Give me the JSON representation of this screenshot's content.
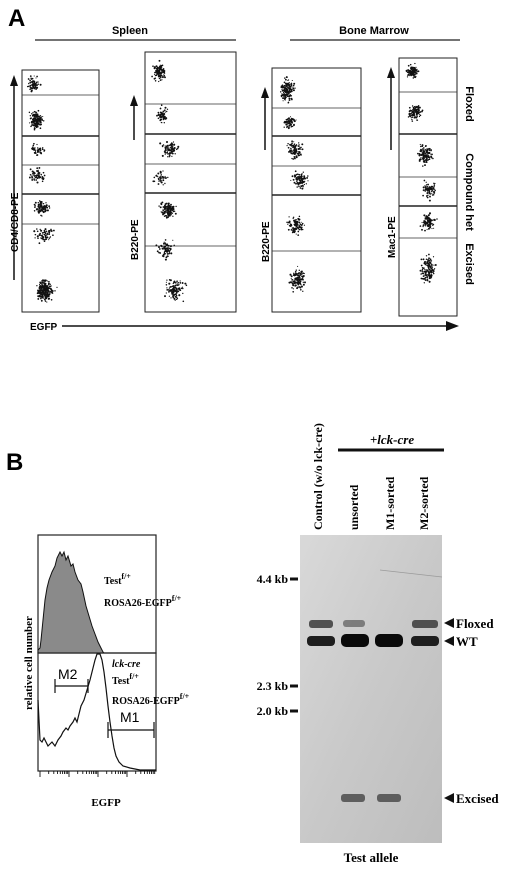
{
  "panel_a": {
    "letter": "A",
    "group_spleen": "Spleen",
    "group_bone_marrow": "Bone Marrow",
    "y_labels": [
      "CD4/CD8-PE",
      "B220-PE",
      "B220-PE",
      "Mac1-PE"
    ],
    "row_labels": [
      "Floxed",
      "Compound het",
      "Excised"
    ],
    "x_label": "EGFP"
  },
  "panel_b": {
    "letter": "B",
    "histogram": {
      "y_label": "relative cell number",
      "x_label": "EGFP",
      "top_text_1": "Test",
      "top_text_1_sup": "f/+",
      "top_text_2": "ROSA26-EGFP",
      "top_text_2_sup": "f/+",
      "bottom_text_0": "lck-cre",
      "bottom_text_1": "Test",
      "bottom_text_1_sup": "f/+",
      "bottom_text_2": "ROSA26-EGFP",
      "bottom_text_2_sup": "f/+",
      "gate_m1": "M1",
      "gate_m2": "M2"
    },
    "blot": {
      "lck_header": "+lck-cre",
      "lane_labels": [
        "Control (w/o lck-cre)",
        "unsorted",
        "M1-sorted",
        "M2-sorted"
      ],
      "size_markers": [
        "4.4 kb",
        "2.3 kb",
        "2.0 kb"
      ],
      "band_labels": [
        "Floxed",
        "WT",
        "Excised"
      ],
      "x_label": "Test allele"
    }
  }
}
